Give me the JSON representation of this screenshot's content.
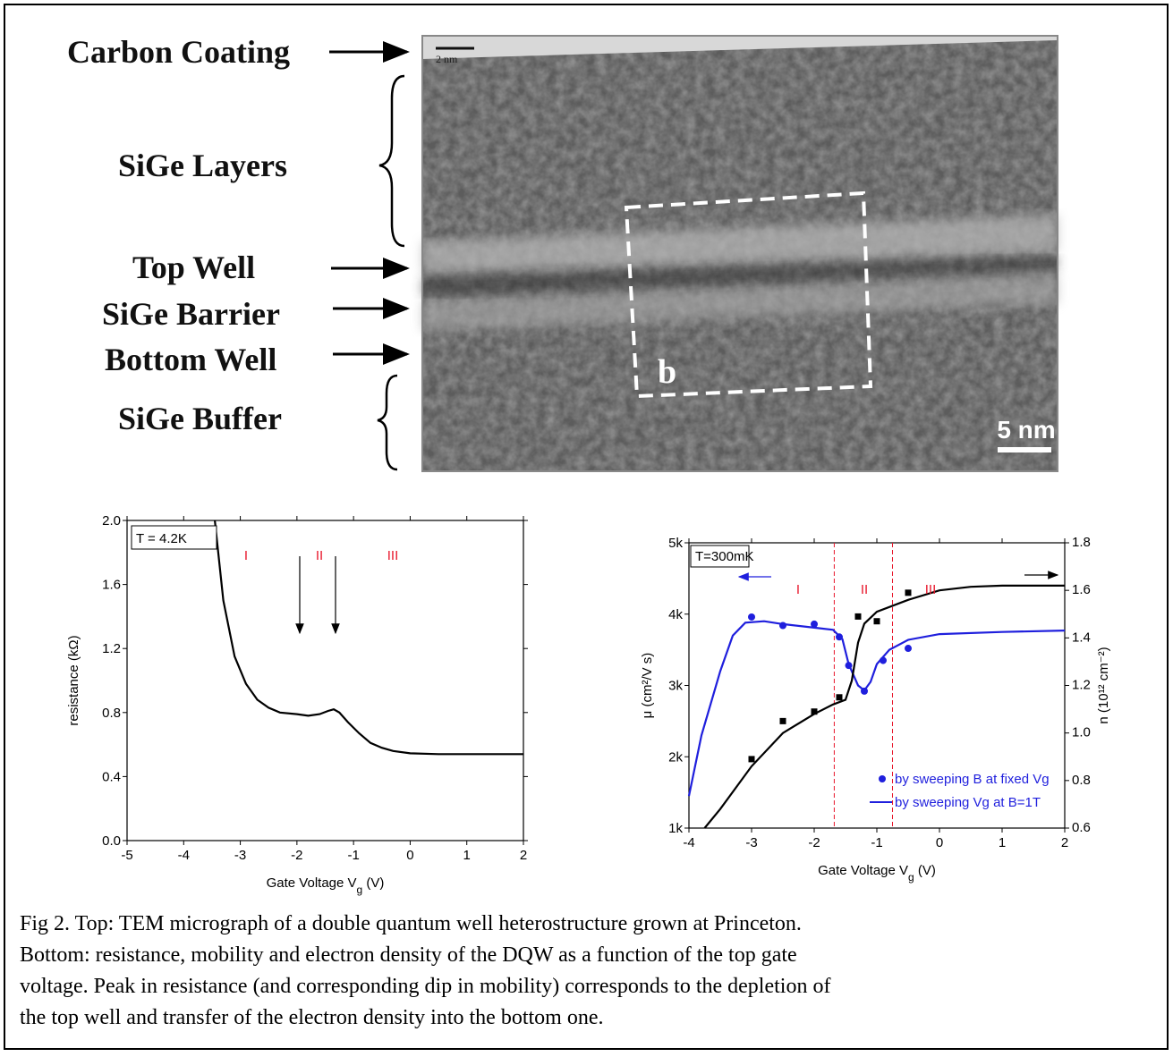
{
  "micrograph": {
    "labels": [
      "Carbon Coating",
      "SiGe Layers",
      "Top Well",
      "SiGe Barrier",
      "Bottom Well",
      "SiGe Buffer"
    ],
    "panel_label": "b",
    "scale_bar": "5 nm",
    "small_scale": "2 nm"
  },
  "chart_data": [
    {
      "type": "line",
      "xlabel": [
        "Gate Voltage V",
        "g",
        " (V)"
      ],
      "ylabel": "resistance (kΩ)",
      "xlim": [
        -5,
        2
      ],
      "xticks": [
        -5,
        -4,
        -3,
        -2,
        -1,
        0,
        1,
        2
      ],
      "ylim": [
        0,
        2
      ],
      "yticks": [
        {
          "value": 0,
          "label": "0.0"
        },
        0.4,
        0.8,
        1.2,
        1.6,
        {
          "value": 2,
          "label": "2.0"
        }
      ],
      "box_label": "T = 4.2K",
      "regions": [
        "I",
        "II",
        "III"
      ],
      "series": [
        {
          "color": "#000000",
          "style": "line",
          "x": [
            -3.45,
            -3.3,
            -3.1,
            -2.9,
            -2.7,
            -2.5,
            -2.3,
            -2.0,
            -1.8,
            -1.6,
            -1.45,
            -1.35,
            -1.25,
            -1.1,
            -0.9,
            -0.7,
            -0.5,
            -0.3,
            0,
            0.5,
            1,
            2
          ],
          "values": [
            2.0,
            1.5,
            1.15,
            0.98,
            0.88,
            0.83,
            0.8,
            0.79,
            0.78,
            0.79,
            0.81,
            0.82,
            0.8,
            0.74,
            0.67,
            0.61,
            0.58,
            0.56,
            0.545,
            0.54,
            0.54,
            0.54
          ]
        }
      ]
    },
    {
      "type": "line",
      "xlabel": [
        "Gate Voltage V",
        "g",
        " (V)"
      ],
      "ylabel": "μ  (cm²/V s)",
      "y2label": "n (10¹² cm⁻²)",
      "xlim": [
        -4,
        2
      ],
      "xticks": [
        -4,
        -3,
        -2,
        -1,
        0,
        1,
        2
      ],
      "ylim": [
        1000,
        5000
      ],
      "yticks": [
        {
          "value": 1000,
          "label": "1k"
        },
        {
          "value": 2000,
          "label": "2k"
        },
        {
          "value": 3000,
          "label": "3k"
        },
        {
          "value": 4000,
          "label": "4k"
        },
        {
          "value": 5000,
          "label": "5k"
        }
      ],
      "y2lim": [
        0.6,
        1.8
      ],
      "y2ticks": [
        0.6,
        0.8,
        {
          "value": 1,
          "label": "1.0"
        },
        1.2,
        1.4,
        1.6,
        1.8
      ],
      "vlines": [
        -1.68,
        -0.75
      ],
      "vline_color": "#e8182c",
      "box_label": "T=300mK",
      "regions": [
        "I",
        "II",
        "III"
      ],
      "series": [
        {
          "name": "by sweeping B at fixed Vg",
          "color": "#1f1fdd",
          "style": "points",
          "marker": "circle",
          "x": [
            -3,
            -2.5,
            -2,
            -1.6,
            -1.45,
            -1.2,
            -0.9,
            -0.5
          ],
          "values": [
            3960,
            3840,
            3860,
            3680,
            3280,
            2920,
            3350,
            3520
          ]
        },
        {
          "name": "by sweeping Vg at B=1T",
          "color": "#1f1fdd",
          "style": "line",
          "x": [
            -4,
            -3.8,
            -3.5,
            -3.3,
            -3.1,
            -2.8,
            -2.5,
            -2,
            -1.7,
            -1.55,
            -1.45,
            -1.3,
            -1.2,
            -1.1,
            -1,
            -0.8,
            -0.5,
            0,
            1,
            2
          ],
          "values": [
            1450,
            2300,
            3200,
            3700,
            3880,
            3900,
            3860,
            3810,
            3780,
            3650,
            3300,
            3000,
            2930,
            3050,
            3300,
            3500,
            3640,
            3720,
            3750,
            3770
          ]
        },
        {
          "color": "#000000",
          "style": "line",
          "axis": "y2",
          "x": [
            -3.75,
            -3.5,
            -3,
            -2.5,
            -2,
            -1.7,
            -1.5,
            -1.4,
            -1.3,
            -1.2,
            -1,
            -0.5,
            0,
            0.5,
            1,
            2
          ],
          "values": [
            0.6,
            0.68,
            0.86,
            1.0,
            1.08,
            1.12,
            1.14,
            1.22,
            1.38,
            1.46,
            1.51,
            1.56,
            1.6,
            1.615,
            1.62,
            1.62
          ]
        },
        {
          "color": "#000000",
          "style": "points",
          "marker": "square",
          "axis": "y2",
          "x": [
            -3,
            -2.5,
            -2,
            -1.6,
            -1.3,
            -1,
            -0.5
          ],
          "values": [
            0.89,
            1.05,
            1.09,
            1.15,
            1.49,
            1.47,
            1.59
          ]
        }
      ]
    }
  ],
  "caption": [
    "Fig 2. Top: TEM micrograph of a double quantum well heterostructure grown at Princeton.",
    "Bottom: resistance, mobility and electron density of the DQW as a function of the top gate",
    "voltage. Peak in resistance (and corresponding dip in mobility) corresponds to the depletion of",
    "the top well and transfer of the electron density into the bottom one."
  ]
}
